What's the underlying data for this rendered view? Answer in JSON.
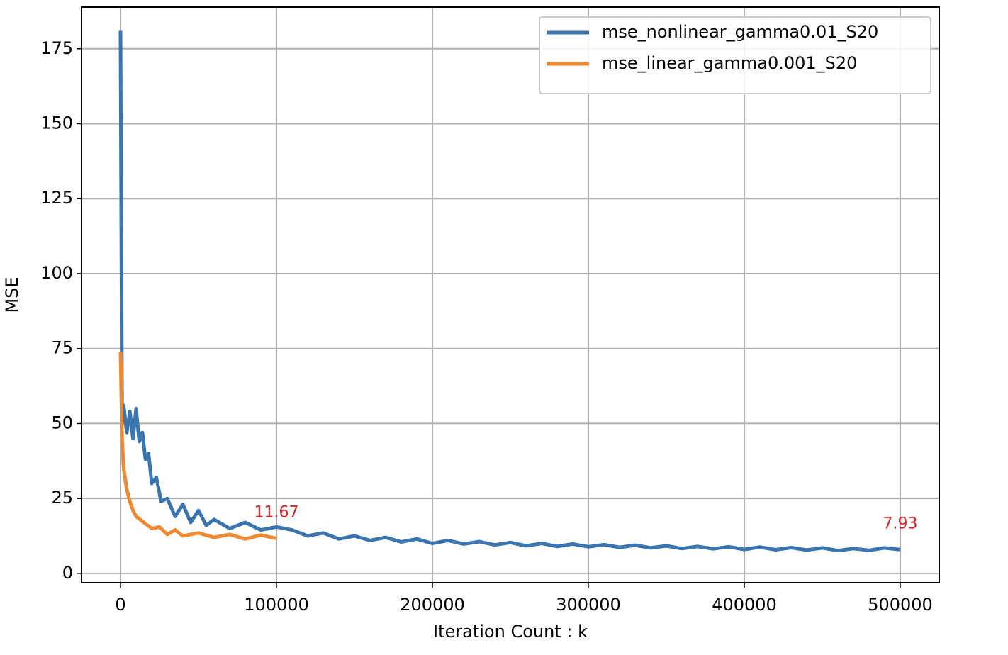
{
  "chart_data": {
    "type": "line",
    "x_label": "Iteration Count : k",
    "y_label": "MSE",
    "xlim": [
      -25000,
      525000
    ],
    "ylim": [
      -3.1,
      188.9
    ],
    "xticks": [
      0,
      100000,
      200000,
      300000,
      400000,
      500000
    ],
    "yticks": [
      0,
      25,
      50,
      75,
      100,
      125,
      150,
      175
    ],
    "grid": true,
    "legend": "upper right",
    "series": [
      {
        "name": "mse_nonlinear_gamma0.01_S20",
        "color": "#3a75b0",
        "x": [
          0,
          1000,
          2000,
          4000,
          6000,
          8000,
          10000,
          12000,
          14000,
          16000,
          18000,
          20000,
          23000,
          26000,
          30000,
          35000,
          40000,
          45000,
          50000,
          55000,
          60000,
          70000,
          80000,
          90000,
          100000,
          110000,
          120000,
          130000,
          140000,
          150000,
          160000,
          170000,
          180000,
          190000,
          200000,
          210000,
          220000,
          230000,
          240000,
          250000,
          260000,
          270000,
          280000,
          290000,
          300000,
          310000,
          320000,
          330000,
          340000,
          350000,
          360000,
          370000,
          380000,
          390000,
          400000,
          410000,
          420000,
          430000,
          440000,
          450000,
          460000,
          470000,
          480000,
          490000,
          500000
        ],
        "values": [
          181,
          50,
          56,
          47,
          54,
          45,
          55,
          44,
          47,
          38,
          40,
          30,
          32,
          24,
          25,
          19,
          23,
          17,
          21,
          16,
          18,
          15,
          17,
          14.5,
          15.5,
          14.5,
          12.5,
          13.5,
          11.5,
          12.5,
          11,
          12,
          10.5,
          11.5,
          10,
          11,
          9.8,
          10.6,
          9.5,
          10.3,
          9.2,
          10,
          9,
          9.8,
          8.9,
          9.6,
          8.7,
          9.4,
          8.5,
          9.2,
          8.3,
          9,
          8.2,
          8.9,
          8,
          8.8,
          7.9,
          8.6,
          7.8,
          8.5,
          7.6,
          8.3,
          7.7,
          8.5,
          7.93
        ]
      },
      {
        "name": "mse_linear_gamma0.001_S20",
        "color": "#ef8a33",
        "x": [
          0,
          1000,
          2000,
          4000,
          6000,
          8000,
          10000,
          15000,
          20000,
          25000,
          30000,
          35000,
          40000,
          50000,
          60000,
          70000,
          80000,
          90000,
          100000
        ],
        "values": [
          74,
          45,
          35,
          28,
          24,
          21,
          19,
          17,
          15,
          15.5,
          13,
          14.5,
          12.5,
          13.5,
          12,
          13,
          11.5,
          12.8,
          11.67
        ]
      }
    ],
    "annotations": [
      {
        "label": "11.67",
        "x": 100000,
        "value": 11.67,
        "color": "#d62728"
      },
      {
        "label": "7.93",
        "x": 500000,
        "value": 7.93,
        "color": "#d62728"
      }
    ]
  }
}
